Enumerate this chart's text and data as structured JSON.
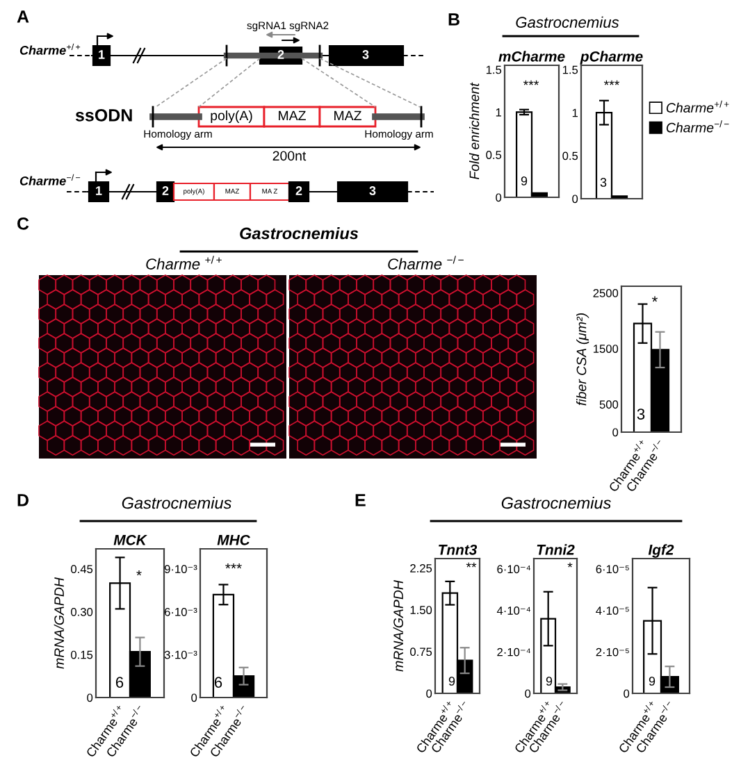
{
  "chart_data": [
    {
      "type": "other",
      "annotations": [
        "A",
        "Charme$^{+/+}$",
        "1",
        "2",
        "3",
        "sgRNA1 sgRNA2",
        "ssODN",
        "poly(A)",
        "MAZ",
        "MAZ",
        "Homology arm",
        "Homology arm",
        "200nt",
        "Charme$^{−/−}$",
        "1",
        "2",
        "poly(A)",
        "MAZ",
        "MA Z",
        "2",
        "3"
      ]
    },
    {
      "type": "bar",
      "title": "mCharme",
      "ylabel": "Fold enrichment",
      "categories": [
        null
      ],
      "series": [
        {
          "color": "#ffffff",
          "values": [
            1.0
          ],
          "errors": [
            0.03
          ]
        },
        {
          "color": "#000000",
          "values": [
            0.05
          ],
          "errors": [
            null
          ]
        }
      ],
      "ylim": [
        0,
        1.55
      ],
      "yticks": [
        0,
        0.5,
        1,
        1.5
      ],
      "annotations": [
        "B",
        "Gastrocnemius",
        "***",
        "9"
      ]
    },
    {
      "type": "bar",
      "title": "pCharme",
      "categories": [
        null
      ],
      "series": [
        {
          "name": "Charme$^{+/+}$",
          "color": "#ffffff",
          "values": [
            1.0
          ],
          "errors": [
            0.14
          ]
        },
        {
          "name": "Charme$^{−/−}$",
          "color": "#000000",
          "values": [
            0.03
          ],
          "errors": [
            null
          ]
        }
      ],
      "ylim": [
        0,
        1.55
      ],
      "yticks": [
        0,
        0.5,
        1,
        1.5
      ],
      "legend": "right",
      "annotations": [
        "***",
        "3"
      ]
    },
    {
      "type": "bar",
      "ylabel": "fiber CSA (μm²)",
      "categories": [
        "Charme$^{+/+}$",
        "Charme$^{−/−}$"
      ],
      "values": [
        1950,
        1480
      ],
      "colors": [
        "#ffffff",
        "#000000"
      ],
      "errors": [
        350,
        320
      ],
      "ylim": [
        0,
        2620
      ],
      "yticks": [
        0,
        500,
        1500,
        2500
      ],
      "annotations": [
        "C",
        "Gastrocnemius",
        "Charme $^{+/+}$",
        "Charme $^{−/−}$",
        "*",
        "3"
      ]
    },
    {
      "type": "bar",
      "title": "MCK",
      "ylabel": "mRNA/GAPDH",
      "categories": [
        "Charme$^{+/+}$",
        "Charme$^{−/−}$"
      ],
      "values": [
        0.4,
        0.16
      ],
      "colors": [
        "#ffffff",
        "#000000"
      ],
      "errors": [
        0.09,
        0.05
      ],
      "ylim": [
        0,
        0.52
      ],
      "yticks": [
        0,
        0.15,
        {
          "value": 0.3,
          "label": "0.30"
        },
        0.45
      ],
      "annotations": [
        "D",
        "Gastrocnemius",
        "*",
        "6"
      ]
    },
    {
      "type": "bar",
      "title": "MHC",
      "categories": [
        "Charme$^{+/+}$",
        "Charme$^{−/−}$"
      ],
      "values": [
        0.0072,
        0.0015
      ],
      "colors": [
        "#ffffff",
        "#000000"
      ],
      "errors": [
        0.0007,
        0.0006
      ],
      "ylim": [
        0,
        0.0104
      ],
      "yticks": [
        0,
        {
          "value": 0.003,
          "label": "3·10⁻³"
        },
        {
          "value": 0.006,
          "label": "6·10⁻³"
        },
        {
          "value": 0.009,
          "label": "9·10⁻³"
        }
      ],
      "annotations": [
        "***",
        "6"
      ]
    },
    {
      "type": "bar",
      "title": "Tnnt3",
      "ylabel": "mRNA/GAPDH",
      "categories": [
        "Charme$^{+/+}$",
        "Charme$^{−/−}$"
      ],
      "values": [
        1.8,
        0.59
      ],
      "colors": [
        "#ffffff",
        "#000000"
      ],
      "errors": [
        0.21,
        0.23
      ],
      "ylim": [
        0,
        2.42
      ],
      "yticks": [
        0,
        0.75,
        {
          "value": 1.5,
          "label": "1.50"
        },
        2.25
      ],
      "annotations": [
        "E",
        "Gastrocnemius",
        "**",
        "9"
      ]
    },
    {
      "type": "bar",
      "title": "Tnni2",
      "categories": [
        "Charme$^{+/+}$",
        "Charme$^{−/−}$"
      ],
      "values": [
        0.00036,
        3e-05
      ],
      "colors": [
        "#ffffff",
        "#000000"
      ],
      "errors": [
        0.00013,
        1.5e-05
      ],
      "ylim": [
        0,
        0.00065
      ],
      "yticks": [
        0,
        {
          "value": 0.0002,
          "label": "2·10⁻⁴"
        },
        {
          "value": 0.0004,
          "label": "4·10⁻⁴"
        },
        {
          "value": 0.0006,
          "label": "6·10⁻⁴"
        }
      ],
      "annotations": [
        "*",
        "9"
      ]
    },
    {
      "type": "bar",
      "title": "Igf2",
      "categories": [
        "Charme$^{+/+}$",
        "Charme$^{−/−}$"
      ],
      "values": [
        3.5e-05,
        8e-06
      ],
      "colors": [
        "#ffffff",
        "#000000"
      ],
      "errors": [
        1.6e-05,
        5e-06
      ],
      "ylim": [
        0,
        6.5e-05
      ],
      "yticks": [
        0,
        {
          "value": 2e-05,
          "label": "2·10⁻⁵"
        },
        {
          "value": 4e-05,
          "label": "4·10⁻⁵"
        },
        {
          "value": 6e-05,
          "label": "6·10⁻⁵"
        }
      ],
      "annotations": [
        "9"
      ]
    }
  ]
}
